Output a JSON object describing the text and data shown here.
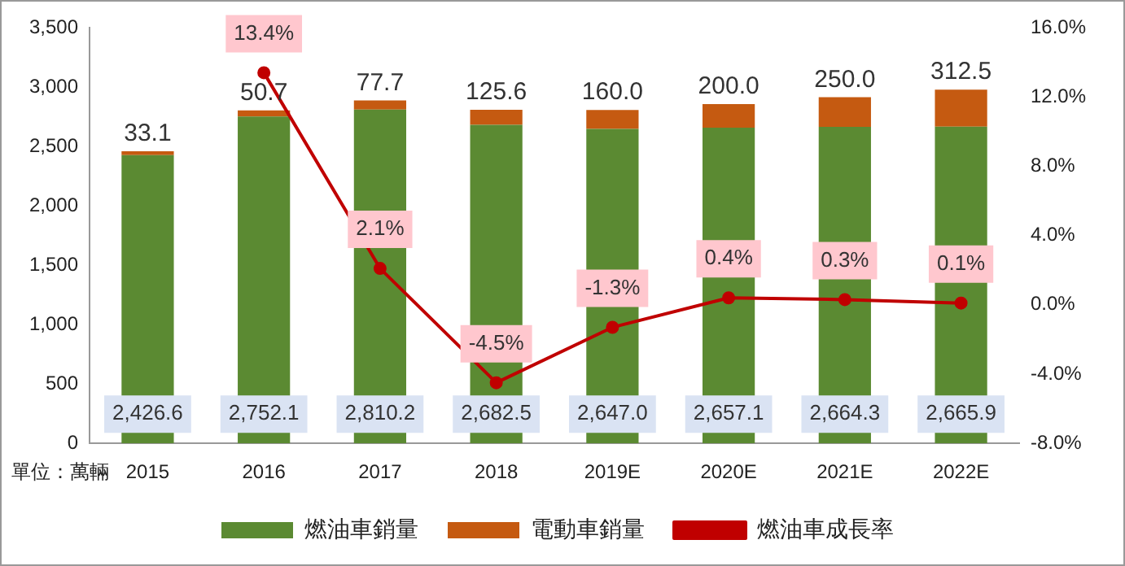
{
  "chart_data": {
    "type": "bar",
    "stacked": true,
    "categories": [
      "2015",
      "2016",
      "2017",
      "2018",
      "2019E",
      "2020E",
      "2021E",
      "2022E"
    ],
    "series": [
      {
        "name": "燃油車銷量",
        "color": "#5b8a32",
        "values": [
          2426.6,
          2752.1,
          2810.2,
          2682.5,
          2647.0,
          2657.1,
          2664.3,
          2665.9
        ],
        "value_labels": [
          "2,426.6",
          "2,752.1",
          "2,810.2",
          "2,682.5",
          "2,647.0",
          "2,657.1",
          "2,664.3",
          "2,665.9"
        ]
      },
      {
        "name": "電動車銷量",
        "color": "#c55a11",
        "values": [
          33.1,
          50.7,
          77.7,
          125.6,
          160.0,
          200.0,
          250.0,
          312.5
        ],
        "value_labels": [
          "33.1",
          "50.7",
          "77.7",
          "125.6",
          "160.0",
          "200.0",
          "250.0",
          "312.5"
        ]
      },
      {
        "name": "燃油車成長率",
        "type": "line",
        "axis": "y2",
        "color": "#c00000",
        "values": [
          null,
          13.4,
          2.1,
          -4.5,
          -1.3,
          0.4,
          0.3,
          0.1
        ],
        "value_labels": [
          null,
          "13.4%",
          "2.1%",
          "-4.5%",
          "-1.3%",
          "0.4%",
          "0.3%",
          "0.1%"
        ]
      }
    ],
    "ylim": [
      0,
      3500
    ],
    "yticks": [
      0,
      {
        "value": 500,
        "label": "500"
      },
      {
        "value": 1000,
        "label": "1,000"
      },
      {
        "value": 1500,
        "label": "1,500"
      },
      {
        "value": 2000,
        "label": "2,000"
      },
      {
        "value": 2500,
        "label": "2,500"
      },
      {
        "value": 3000,
        "label": "3,000"
      },
      {
        "value": 3500,
        "label": "3,500"
      }
    ],
    "y2lim": [
      -8,
      16
    ],
    "y2ticks": [
      {
        "value": -8,
        "label": "-8.0%"
      },
      {
        "value": -4,
        "label": "-4.0%"
      },
      {
        "value": 0,
        "label": "0.0%"
      },
      {
        "value": 4,
        "label": "4.0%"
      },
      {
        "value": 8,
        "label": "8.0%"
      },
      {
        "value": 12,
        "label": "12.0%"
      },
      {
        "value": 16,
        "label": "16.0%"
      }
    ],
    "marker": "circle",
    "line_style": "solid",
    "legend": "bottom",
    "annotations": [
      "單位：萬輛"
    ]
  }
}
